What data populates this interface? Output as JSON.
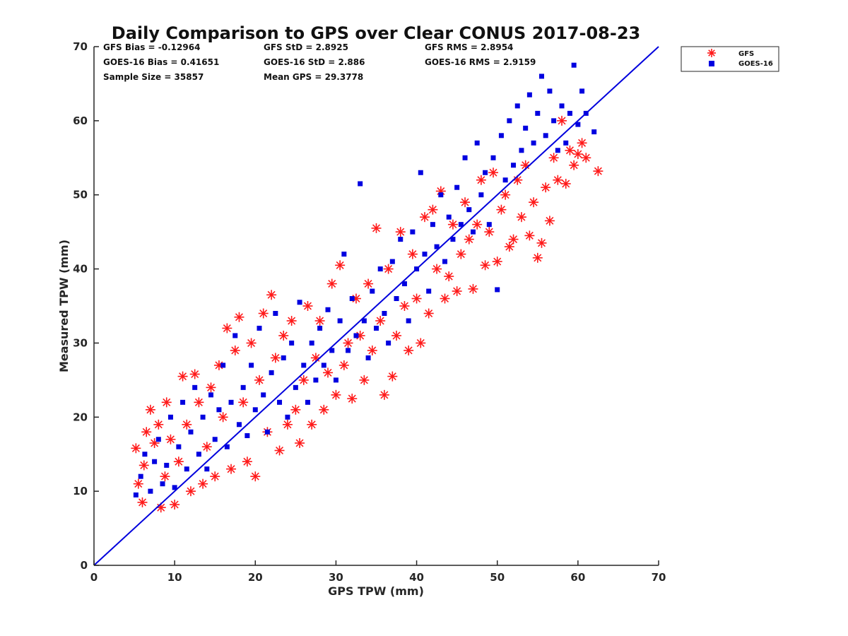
{
  "chart_data": {
    "type": "scatter",
    "title": "Daily Comparison to GPS over Clear CONUS 2017-08-23",
    "xlabel": "GPS TPW (mm)",
    "ylabel": "Measured TPW (mm)",
    "xlim": [
      0,
      70
    ],
    "ylim": [
      0,
      70
    ],
    "xticks": [
      "0",
      "10",
      "20",
      "30",
      "40",
      "50",
      "60",
      "70"
    ],
    "yticks": [
      "0",
      "10",
      "20",
      "30",
      "40",
      "50",
      "60",
      "70"
    ],
    "grid": false,
    "legend_position": "outside-top-right",
    "reference_line": {
      "x": [
        0,
        70
      ],
      "y": [
        0,
        70
      ],
      "color": "#0000dd"
    },
    "stats": [
      "GFS Bias = -0.12964",
      "GFS StD = 2.8925",
      "GFS RMS = 2.8954",
      "GOES-16 Bias = 0.41651",
      "GOES-16 StD = 2.886",
      "GOES-16 RMS = 2.9159",
      "Sample Size = 35857",
      "Mean GPS = 29.3778"
    ],
    "series": [
      {
        "name": "GFS",
        "marker": "asterisk",
        "color": "#ff1a1a",
        "points": [
          [
            5.2,
            15.8
          ],
          [
            5.5,
            11
          ],
          [
            6,
            8.5
          ],
          [
            6.2,
            13.5
          ],
          [
            6.5,
            18
          ],
          [
            7,
            21
          ],
          [
            7.5,
            16.5
          ],
          [
            8,
            19
          ],
          [
            8.3,
            7.8
          ],
          [
            8.8,
            12
          ],
          [
            9,
            22
          ],
          [
            9.5,
            17
          ],
          [
            10,
            8.2
          ],
          [
            10.5,
            14
          ],
          [
            11,
            25.5
          ],
          [
            11.5,
            19
          ],
          [
            12,
            10
          ],
          [
            12.5,
            25.8
          ],
          [
            13,
            22
          ],
          [
            13.5,
            11
          ],
          [
            14,
            16
          ],
          [
            14.5,
            24
          ],
          [
            15,
            12
          ],
          [
            15.5,
            27
          ],
          [
            16,
            20
          ],
          [
            16.5,
            32
          ],
          [
            17,
            13
          ],
          [
            17.5,
            29
          ],
          [
            18,
            33.5
          ],
          [
            18.5,
            22
          ],
          [
            19,
            14
          ],
          [
            19.5,
            30
          ],
          [
            20,
            12
          ],
          [
            20.5,
            25
          ],
          [
            21,
            34
          ],
          [
            21.5,
            18
          ],
          [
            22,
            36.5
          ],
          [
            22.5,
            28
          ],
          [
            23,
            15.5
          ],
          [
            23.5,
            31
          ],
          [
            24,
            19
          ],
          [
            24.5,
            33
          ],
          [
            25,
            21
          ],
          [
            25.5,
            16.5
          ],
          [
            26,
            25
          ],
          [
            26.5,
            35
          ],
          [
            27,
            19
          ],
          [
            27.5,
            28
          ],
          [
            28,
            33
          ],
          [
            28.5,
            21
          ],
          [
            29,
            26
          ],
          [
            29.5,
            38
          ],
          [
            30,
            23
          ],
          [
            30.5,
            40.5
          ],
          [
            31,
            27
          ],
          [
            31.5,
            30
          ],
          [
            32,
            22.5
          ],
          [
            32.5,
            36
          ],
          [
            33,
            31
          ],
          [
            33.5,
            25
          ],
          [
            34,
            38
          ],
          [
            34.5,
            29
          ],
          [
            35,
            45.5
          ],
          [
            35.5,
            33
          ],
          [
            36,
            23
          ],
          [
            36.5,
            40
          ],
          [
            37,
            25.5
          ],
          [
            37.5,
            31
          ],
          [
            38,
            45
          ],
          [
            38.5,
            35
          ],
          [
            39,
            29
          ],
          [
            39.5,
            42
          ],
          [
            40,
            36
          ],
          [
            40.5,
            30
          ],
          [
            41,
            47
          ],
          [
            41.5,
            34
          ],
          [
            42,
            48
          ],
          [
            42.5,
            40
          ],
          [
            43,
            50.5
          ],
          [
            43.5,
            36
          ],
          [
            44,
            39
          ],
          [
            44.5,
            46
          ],
          [
            45,
            37
          ],
          [
            45.5,
            42
          ],
          [
            46,
            49
          ],
          [
            46.5,
            44
          ],
          [
            47,
            37.3
          ],
          [
            47.5,
            46
          ],
          [
            48,
            52
          ],
          [
            48.5,
            40.5
          ],
          [
            49,
            45
          ],
          [
            49.5,
            53
          ],
          [
            50,
            41
          ],
          [
            50.5,
            48
          ],
          [
            51,
            50
          ],
          [
            51.5,
            43
          ],
          [
            52,
            44
          ],
          [
            52.5,
            52
          ],
          [
            53,
            47
          ],
          [
            53.5,
            54
          ],
          [
            54,
            44.5
          ],
          [
            54.5,
            49
          ],
          [
            55,
            41.5
          ],
          [
            55.5,
            43.5
          ],
          [
            56,
            51
          ],
          [
            56.5,
            46.5
          ],
          [
            57,
            55
          ],
          [
            57.5,
            52
          ],
          [
            58,
            60
          ],
          [
            58.5,
            51.5
          ],
          [
            59,
            56
          ],
          [
            59.5,
            54
          ],
          [
            60,
            55.5
          ],
          [
            60.5,
            57
          ],
          [
            61,
            55
          ],
          [
            62.5,
            53.2
          ]
        ]
      },
      {
        "name": "GOES-16",
        "marker": "square",
        "color": "#0000e0",
        "points": [
          [
            5.2,
            9.5
          ],
          [
            5.8,
            12
          ],
          [
            6.3,
            15
          ],
          [
            7,
            10
          ],
          [
            7.5,
            14
          ],
          [
            8,
            17
          ],
          [
            8.5,
            11
          ],
          [
            9,
            13.5
          ],
          [
            9.5,
            20
          ],
          [
            10,
            10.5
          ],
          [
            10.5,
            16
          ],
          [
            11,
            22
          ],
          [
            11.5,
            13
          ],
          [
            12,
            18
          ],
          [
            12.5,
            24
          ],
          [
            13,
            15
          ],
          [
            13.5,
            20
          ],
          [
            14,
            13
          ],
          [
            14.5,
            23
          ],
          [
            15,
            17
          ],
          [
            15.5,
            21
          ],
          [
            16,
            27
          ],
          [
            16.5,
            16
          ],
          [
            17,
            22
          ],
          [
            17.5,
            31
          ],
          [
            18,
            19
          ],
          [
            18.5,
            24
          ],
          [
            19,
            17.5
          ],
          [
            19.5,
            27
          ],
          [
            20,
            21
          ],
          [
            20.5,
            32
          ],
          [
            21,
            23
          ],
          [
            21.5,
            18
          ],
          [
            22,
            26
          ],
          [
            22.5,
            34
          ],
          [
            23,
            22
          ],
          [
            23.5,
            28
          ],
          [
            24,
            20
          ],
          [
            24.5,
            30
          ],
          [
            25,
            24
          ],
          [
            25.5,
            35.5
          ],
          [
            26,
            27
          ],
          [
            26.5,
            22
          ],
          [
            27,
            30
          ],
          [
            27.5,
            25
          ],
          [
            28,
            32
          ],
          [
            28.5,
            27
          ],
          [
            29,
            34.5
          ],
          [
            29.5,
            29
          ],
          [
            30,
            25
          ],
          [
            30.5,
            33
          ],
          [
            31,
            42
          ],
          [
            31.5,
            29
          ],
          [
            32,
            36
          ],
          [
            32.5,
            31
          ],
          [
            33,
            51.5
          ],
          [
            33.5,
            33
          ],
          [
            34,
            28
          ],
          [
            34.5,
            37
          ],
          [
            35,
            32
          ],
          [
            35.5,
            40
          ],
          [
            36,
            34
          ],
          [
            36.5,
            30
          ],
          [
            37,
            41
          ],
          [
            37.5,
            36
          ],
          [
            38,
            44
          ],
          [
            38.5,
            38
          ],
          [
            39,
            33
          ],
          [
            39.5,
            45
          ],
          [
            40,
            40
          ],
          [
            40.5,
            53
          ],
          [
            41,
            42
          ],
          [
            41.5,
            37
          ],
          [
            42,
            46
          ],
          [
            42.5,
            43
          ],
          [
            43,
            50
          ],
          [
            43.5,
            41
          ],
          [
            44,
            47
          ],
          [
            44.5,
            44
          ],
          [
            45,
            51
          ],
          [
            45.5,
            46
          ],
          [
            46,
            55
          ],
          [
            46.5,
            48
          ],
          [
            47,
            45
          ],
          [
            47.5,
            57
          ],
          [
            48,
            50
          ],
          [
            48.5,
            53
          ],
          [
            49,
            46
          ],
          [
            49.5,
            55
          ],
          [
            50,
            37.2
          ],
          [
            50.5,
            58
          ],
          [
            51,
            52
          ],
          [
            51.5,
            60
          ],
          [
            52,
            54
          ],
          [
            52.5,
            62
          ],
          [
            53,
            56
          ],
          [
            53.5,
            59
          ],
          [
            54,
            63.5
          ],
          [
            54.5,
            57
          ],
          [
            55,
            61
          ],
          [
            55.5,
            66
          ],
          [
            56,
            58
          ],
          [
            56.5,
            64
          ],
          [
            57,
            60
          ],
          [
            57.5,
            56
          ],
          [
            58,
            62
          ],
          [
            58.5,
            57
          ],
          [
            59,
            61
          ],
          [
            59.5,
            67.5
          ],
          [
            60,
            59.5
          ],
          [
            60.5,
            64
          ],
          [
            61,
            61
          ],
          [
            62,
            58.5
          ]
        ]
      }
    ]
  }
}
